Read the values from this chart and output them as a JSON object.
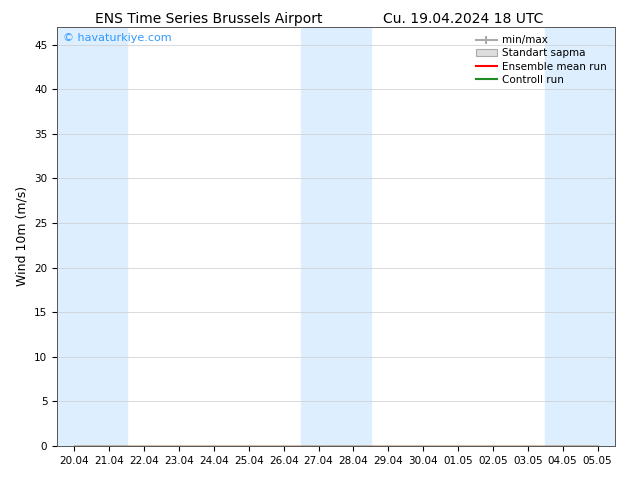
{
  "title_left": "ENS Time Series Brussels Airport",
  "title_right": "Cu. 19.04.2024 18 UTC",
  "ylabel": "Wind 10m (m/s)",
  "watermark": "© havaturkiye.com",
  "ylim": [
    0,
    47
  ],
  "yticks": [
    0,
    5,
    10,
    15,
    20,
    25,
    30,
    35,
    40,
    45
  ],
  "bg_color": "#ffffff",
  "plot_bg_color": "#ffffff",
  "band_color": "#ddeeff",
  "x_tick_labels": [
    "20.04",
    "21.04",
    "22.04",
    "23.04",
    "24.04",
    "25.04",
    "26.04",
    "27.04",
    "28.04",
    "29.04",
    "30.04",
    "01.05",
    "02.05",
    "03.05",
    "04.05",
    "05.05"
  ],
  "num_points": 16,
  "shaded_indices": [
    0,
    1,
    7,
    8,
    14,
    15
  ],
  "legend_labels": [
    "min/max",
    "Standart sapma",
    "Ensemble mean run",
    "Controll run"
  ],
  "legend_colors": [
    "#aaaaaa",
    "#cccccc",
    "#ff0000",
    "#228B22"
  ],
  "ensemble_mean": [
    0,
    0,
    0,
    0,
    0,
    0,
    0,
    0,
    0,
    0,
    0,
    0,
    0,
    0,
    0,
    0
  ],
  "control_run": [
    0,
    0,
    0,
    0,
    0,
    0,
    0,
    0,
    0,
    0,
    0,
    0,
    0,
    0,
    0,
    0
  ],
  "watermark_color": "#3399ff",
  "title_fontsize": 10,
  "tick_fontsize": 7.5,
  "ylabel_fontsize": 9
}
